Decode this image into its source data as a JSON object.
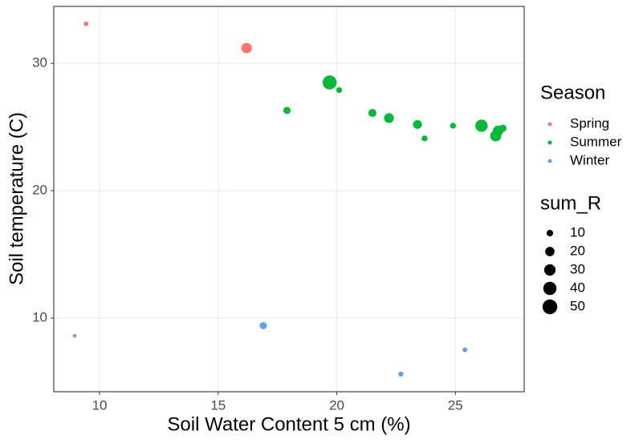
{
  "chart_data": {
    "type": "scatter",
    "x_label": "Soil Water Content 5 cm (%)",
    "y_label": "Soil temperature (C)",
    "xlim": [
      8.07,
      27.9
    ],
    "xticks": [
      10,
      15,
      20,
      25
    ],
    "ylim": [
      4.21,
      34.47
    ],
    "yticks": [
      10,
      20,
      30
    ],
    "grid": true,
    "legend_title": "Season",
    "series": [
      {
        "name": "Spring",
        "color": "#F8766D",
        "x": [
          9.43,
          16.2
        ],
        "values": [
          33.1,
          31.2
        ],
        "sizes": [
          5,
          25
        ]
      },
      {
        "name": "Summer",
        "color": "#00BA38",
        "x": [
          19.7,
          20.1,
          17.9,
          21.5,
          22.2,
          23.4,
          23.7,
          24.9,
          26.1,
          26.7,
          26.8,
          27.0
        ],
        "values": [
          28.5,
          27.9,
          26.3,
          26.1,
          25.7,
          25.2,
          24.1,
          25.1,
          25.1,
          24.3,
          24.7,
          24.9
        ],
        "sizes": [
          45,
          8,
          12,
          15,
          22,
          18,
          8,
          8,
          35,
          28,
          25,
          12
        ]
      },
      {
        "name": "Winter",
        "color": "#619CFF",
        "x": [
          8.95,
          16.9,
          22.7,
          25.4
        ],
        "values": [
          8.6,
          9.4,
          5.6,
          7.5
        ],
        "sizes": [
          3,
          12,
          6,
          5
        ]
      }
    ],
    "size_legend": {
      "title": "sum_R",
      "values": [
        10,
        20,
        30,
        40,
        50
      ]
    }
  }
}
